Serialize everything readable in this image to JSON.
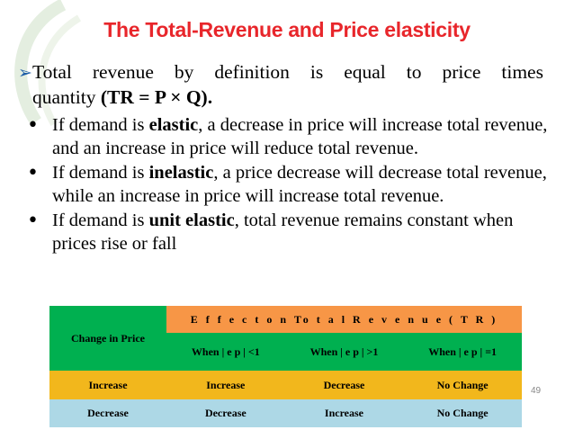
{
  "title": "The Total-Revenue  and Price elasticity",
  "lead": {
    "line1_words": [
      "Total",
      "revenue",
      "by",
      "definition",
      "is",
      "equal",
      "to",
      "price",
      "times"
    ],
    "line2_text": "quantity ",
    "line2_bold": "(TR = P × Q)."
  },
  "bullets": [
    {
      "pre": "If demand is ",
      "bold": "elastic",
      "post": ", a decrease in price will increase total revenue, and an increase in price will reduce total revenue."
    },
    {
      "pre": "If demand is ",
      "bold": "inelastic",
      "post": ", a price decrease will decrease total revenue, while an increase in price will increase total revenue."
    },
    {
      "pre": "If demand is ",
      "bold": "unit elastic",
      "post": ", total revenue remains constant when prices rise or fall"
    }
  ],
  "table": {
    "corner": "Change in Price",
    "effect_header": "E f f e c t  o n   To t a l  R e v e n u e  ( T R )",
    "subheaders": [
      "When | e p |  <1",
      "When | e p |  >1",
      "When | e p |  =1"
    ],
    "rows": [
      {
        "change": "Increase",
        "cells": [
          "Increase",
          "Decrease",
          "No Change"
        ]
      },
      {
        "change": "Decrease",
        "cells": [
          "Decrease",
          "Increase",
          "No Change"
        ]
      }
    ]
  },
  "page_number": "49",
  "colors": {
    "title": "#e8262b",
    "arrow": "#1f5fa8",
    "green": "#00b050",
    "orange": "#f79646",
    "gold": "#f2b71c",
    "lightblue": "#add8e6"
  }
}
